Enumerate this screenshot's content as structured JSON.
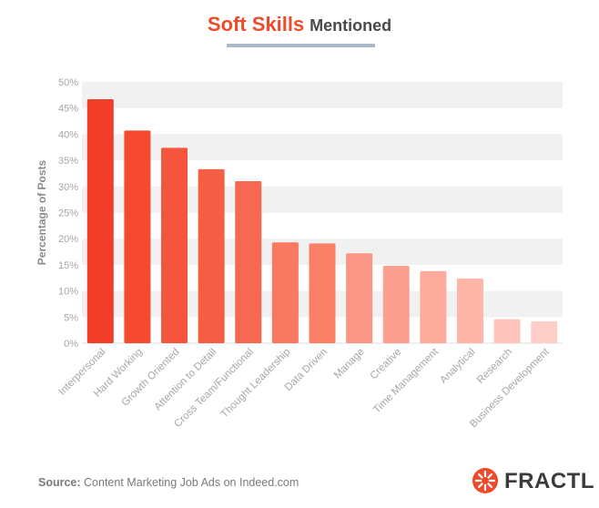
{
  "header": {
    "title_accent": "Soft Skills",
    "title_rest": "Mentioned"
  },
  "chart_data": {
    "type": "bar",
    "ylabel": "Percentage of Posts",
    "xlabel": "",
    "ylim": [
      0,
      50
    ],
    "yticks": [
      "0%",
      "5%",
      "10%",
      "15%",
      "20%",
      "25%",
      "30%",
      "35%",
      "40%",
      "45%",
      "50%"
    ],
    "grid": "alternating horizontal bands",
    "categories": [
      "Interpersonal",
      "Hard Working",
      "Growth Oriented",
      "Attention to Detail",
      "Cross Team/Functional",
      "Thought Leadership",
      "Data Driven",
      "Manage",
      "Creative",
      "Time Management",
      "Analytical",
      "Research",
      "Business Development"
    ],
    "values": [
      46.7,
      40.7,
      37.4,
      33.3,
      31.0,
      19.3,
      19.1,
      17.2,
      14.8,
      13.8,
      12.4,
      4.6,
      4.2
    ],
    "colors": {
      "bars": [
        "#f23e28",
        "#f44a32",
        "#f5553c",
        "#f55e45",
        "#f6684f",
        "#f8795f",
        "#f97f66",
        "#fa9685",
        "#fba090",
        "#fcab9c",
        "#fdb6a8",
        "#fdc5bb",
        "#fdcfc6"
      ],
      "band": "#f1f1f1",
      "axis_text": "#a6a6a6",
      "ylabel": "#8b8b8b"
    }
  },
  "footer": {
    "source_label": "Source:",
    "source_text": "Content Marketing Job Ads on Indeed.com",
    "logo_text": "FRACTL"
  }
}
